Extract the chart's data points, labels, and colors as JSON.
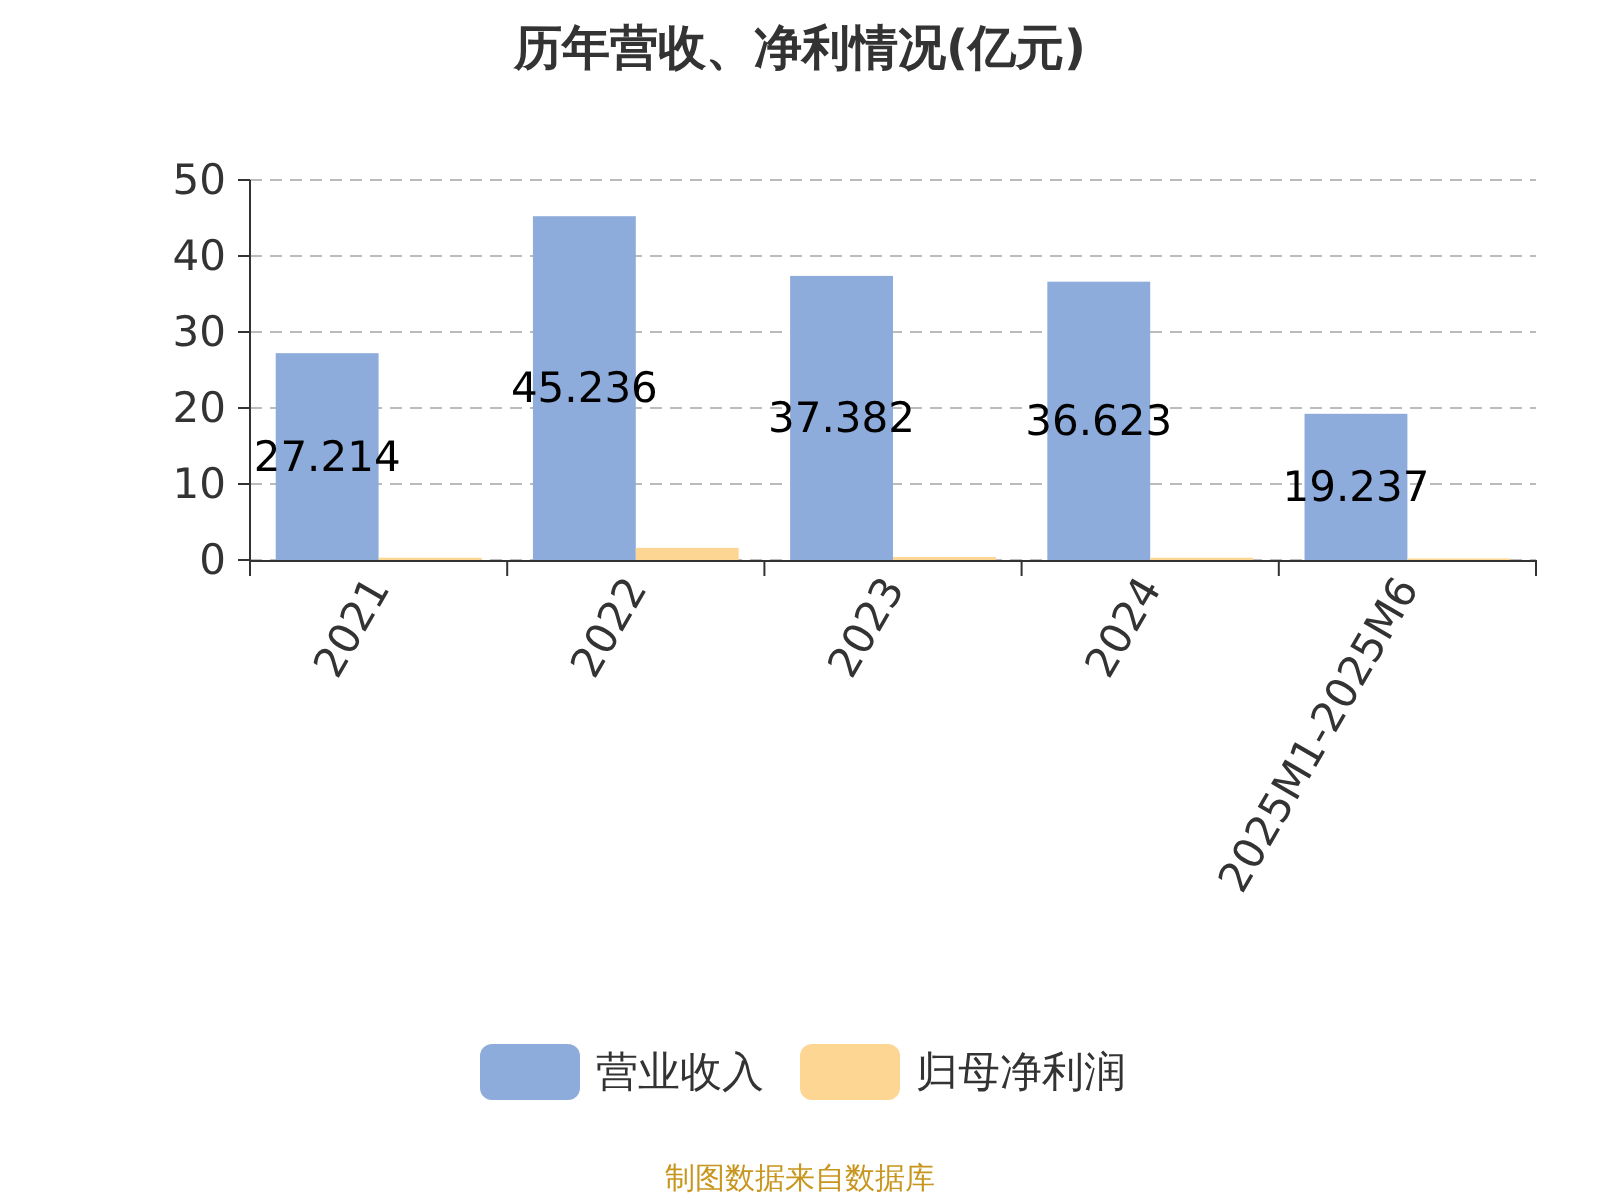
{
  "chart_data": {
    "type": "bar",
    "title": "历年营收、净利情况(亿元)",
    "categories": [
      "2021",
      "2022",
      "2023",
      "2024",
      "2025M1-2025M6"
    ],
    "series": [
      {
        "name": "营业收入",
        "color": "#8eacdb",
        "values": [
          27.214,
          45.236,
          37.382,
          36.623,
          19.237
        ],
        "value_labels": [
          "27.214",
          "45.236",
          "37.382",
          "36.623",
          "19.237"
        ]
      },
      {
        "name": "归母净利润",
        "color": "#fdd693",
        "values": [
          0.3,
          1.6,
          0.4,
          0.3,
          0.2
        ]
      }
    ],
    "ylim": [
      0,
      50
    ],
    "yticks": [
      0,
      10,
      20,
      30,
      40,
      50
    ],
    "grid": "y",
    "legend": "bottom",
    "annotations": [
      "制图数据来自数据库"
    ]
  }
}
